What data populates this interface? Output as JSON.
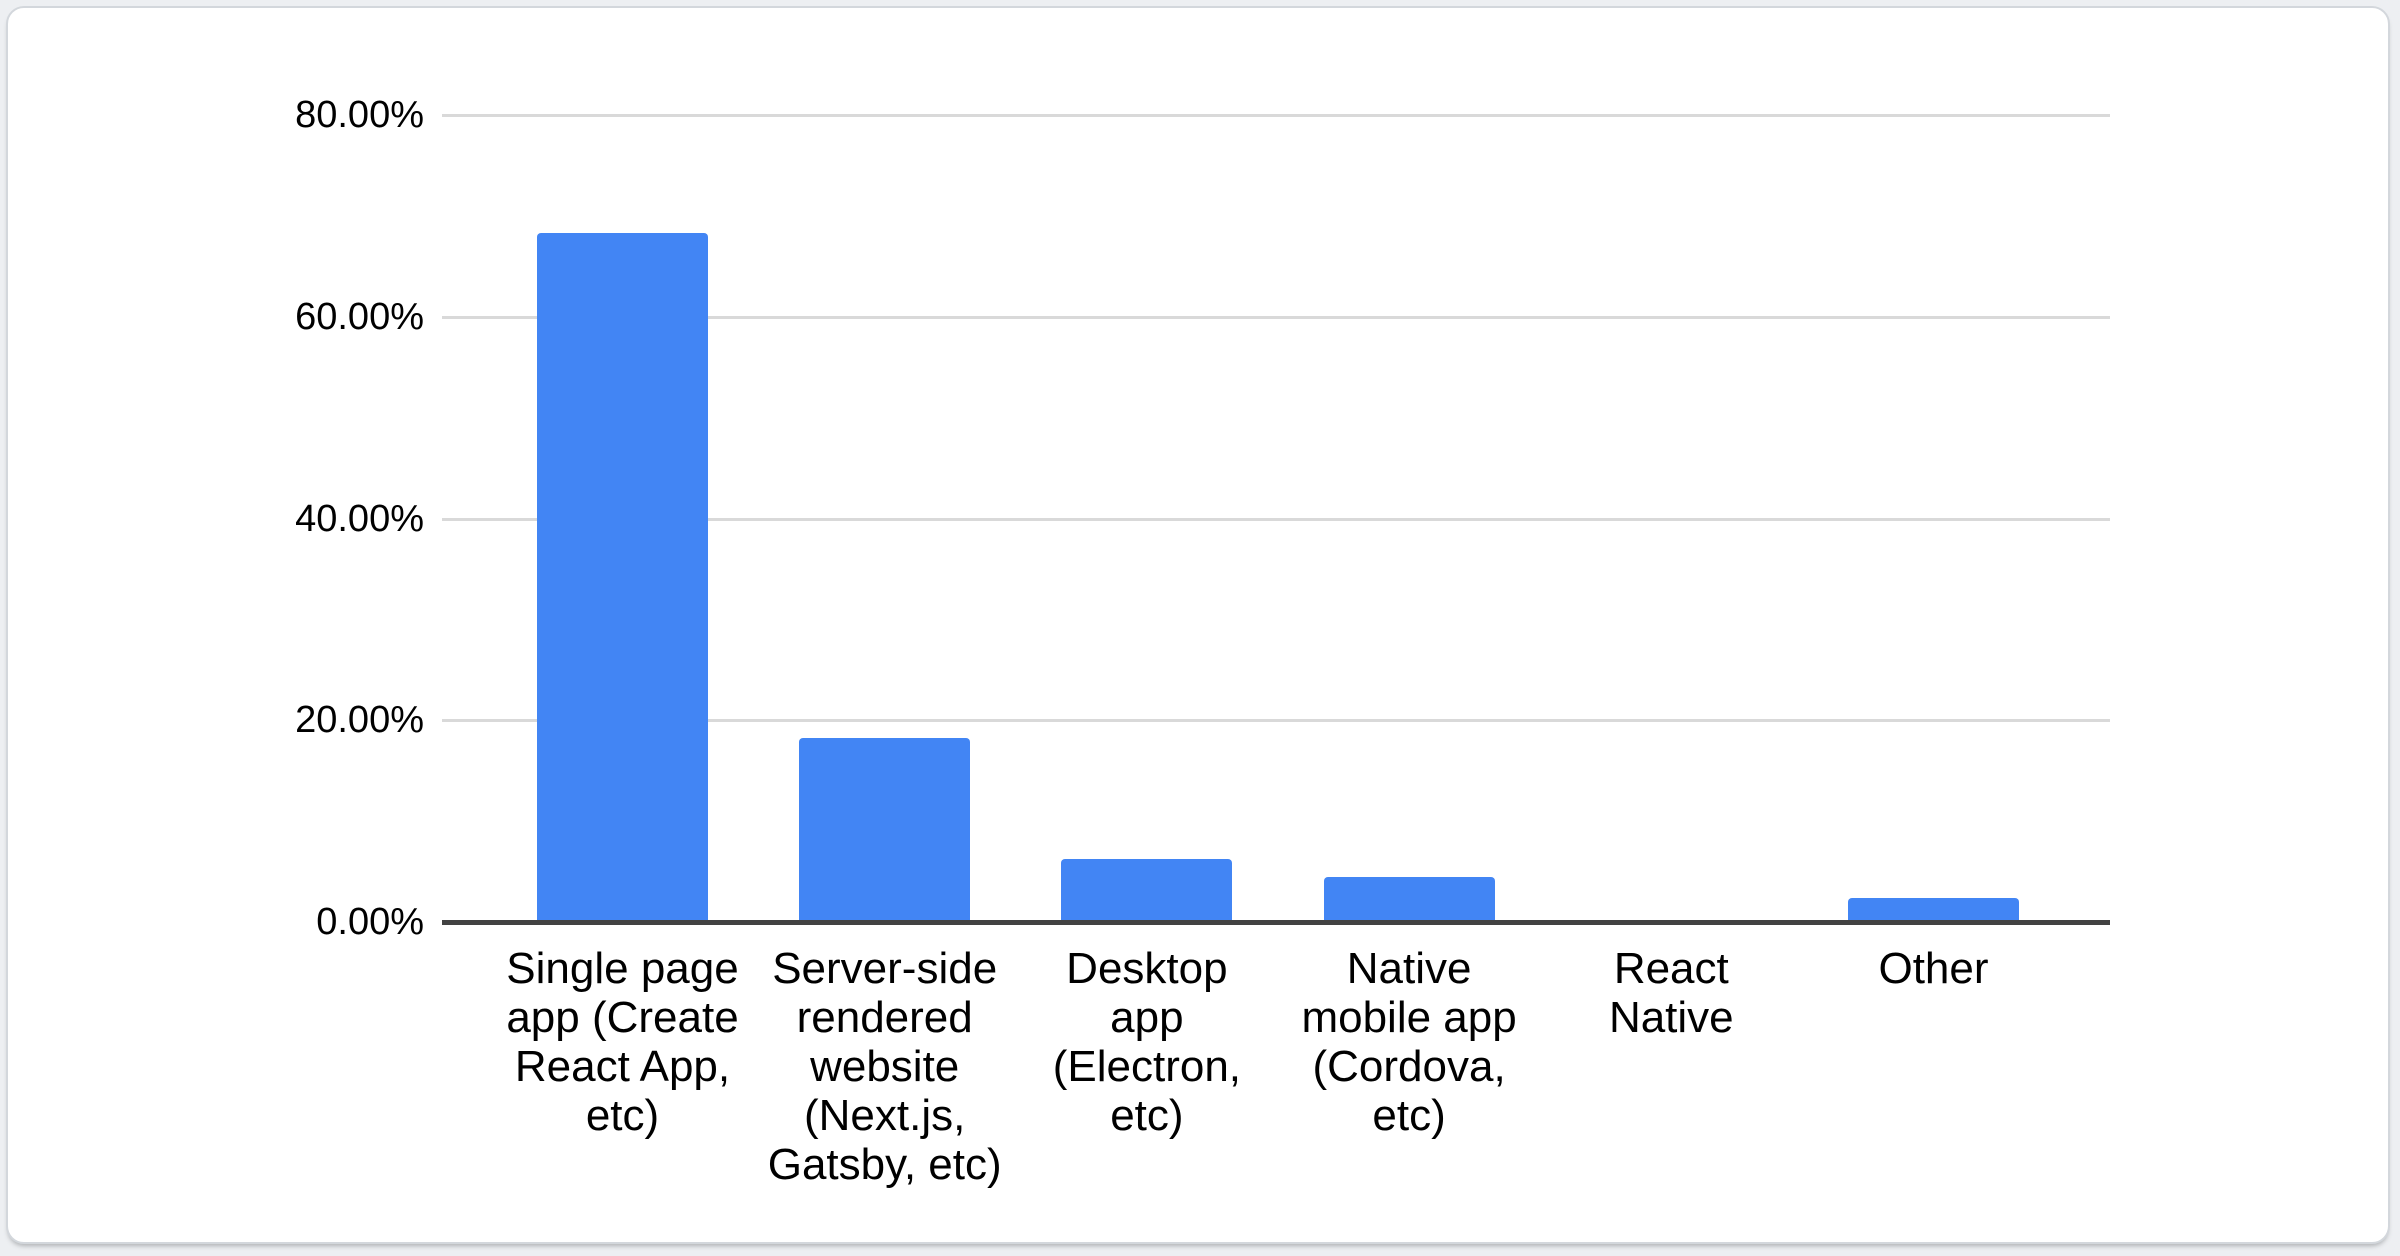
{
  "chart_data": {
    "type": "bar",
    "title": "",
    "xlabel": "",
    "ylabel": "",
    "categories": [
      "Single page app (Create React App, etc)",
      "Server-side rendered website (Next.js, Gatsby, etc)",
      "Desktop app (Electron, etc)",
      "Native mobile app (Cordova, etc)",
      "React Native",
      "Other"
    ],
    "category_lines": [
      [
        "Single page",
        "app (Create",
        "React App,",
        "etc)"
      ],
      [
        "Server-side",
        "rendered",
        "website",
        "(Next.js,",
        "Gatsby, etc)"
      ],
      [
        "Desktop",
        "app",
        "(Electron,",
        "etc)"
      ],
      [
        "Native",
        "mobile app",
        "(Cordova,",
        "etc)"
      ],
      [
        "React",
        "Native"
      ],
      [
        "Other"
      ]
    ],
    "values": [
      68.3,
      18.2,
      6.2,
      4.5,
      0,
      2.4
    ],
    "unit": "%",
    "ylim": [
      0,
      80
    ],
    "y_ticks": [
      {
        "value": 80,
        "label": "80.00%"
      },
      {
        "value": 60,
        "label": "60.00%"
      },
      {
        "value": 40,
        "label": "40.00%"
      },
      {
        "value": 20,
        "label": "20.00%"
      },
      {
        "value": 0,
        "label": "0.00%"
      }
    ],
    "grid": true,
    "legend": false,
    "colors": {
      "bar": "#4285f4",
      "gridline": "#d9d9d9",
      "axis_line": "#424242",
      "label_text": "#000000",
      "card_background": "#ffffff"
    }
  }
}
